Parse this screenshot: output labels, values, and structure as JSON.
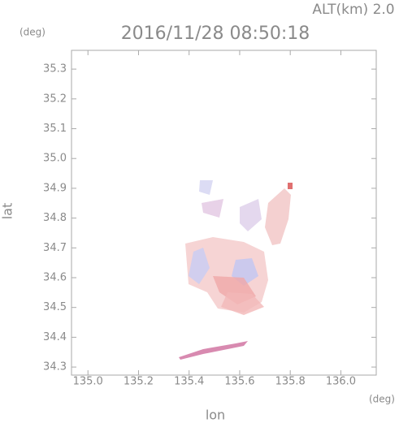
{
  "header": {
    "altitude_label": "ALT(km) 2.0",
    "timestamp": "2016/11/28 08:50:18"
  },
  "chart_data": {
    "type": "map",
    "x_label": "lon",
    "y_label": "lat",
    "x_unit": "(deg)",
    "y_unit": "(deg)",
    "xlim": [
      134.935,
      136.14
    ],
    "ylim": [
      34.273,
      35.363
    ],
    "xticks": [
      {
        "value": 135,
        "label": "135.0"
      },
      135.2,
      135.4,
      135.6,
      135.8,
      {
        "value": 136,
        "label": "136.0"
      }
    ],
    "yticks": [
      34.3,
      34.4,
      34.5,
      34.6,
      34.7,
      34.8,
      34.9,
      {
        "value": 35,
        "label": "35.0"
      },
      35.1,
      35.2,
      35.3
    ]
  }
}
